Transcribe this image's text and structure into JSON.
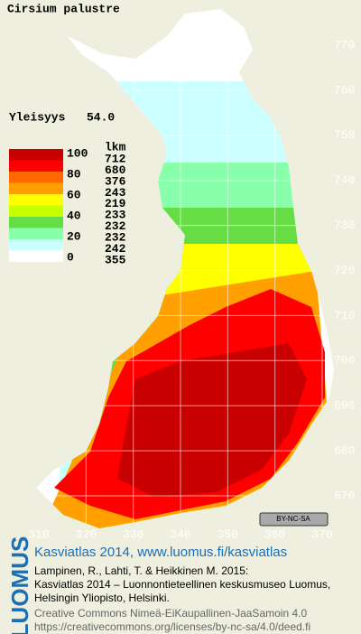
{
  "title": "Cirsium palustre",
  "frequency": {
    "label": "Yleisyys",
    "value": "54.0"
  },
  "legend": {
    "scale_labels": [
      100,
      80,
      60,
      40,
      20,
      0
    ],
    "count_header": "lkm",
    "counts": [
      712,
      680,
      376,
      243,
      219,
      233,
      232,
      232,
      242,
      355
    ],
    "colors": [
      "#c80000",
      "#ff0000",
      "#ff6a00",
      "#ffa000",
      "#ffff00",
      "#c8ff00",
      "#66dd44",
      "#88ffaa",
      "#ccffff",
      "#ffffff"
    ]
  },
  "grid": {
    "northing": [
      770,
      760,
      750,
      740,
      730,
      720,
      710,
      700,
      690,
      680,
      670
    ],
    "easting": [
      310,
      320,
      330,
      340,
      350,
      360,
      370
    ]
  },
  "license_badge": "BY-NC-SA",
  "logo": "LUOMUS",
  "footer": {
    "heading": "Kasviatlas 2014, www.luomus.fi/kasviatlas",
    "citation": [
      "Lampinen, R., Lahti, T. & Heikkinen M. 2015:",
      "Kasviatlas 2014 – Luonnontieteellinen keskusmuseo Luomus,",
      "Helsingin Yliopisto, Helsinki."
    ],
    "license": [
      "Creative Commons Nimeä-EiKaupallinen-JaaSamoin 4.0",
      "https://creativecommons.org/licenses/by-nc-sa/4.0/deed.fi"
    ]
  }
}
